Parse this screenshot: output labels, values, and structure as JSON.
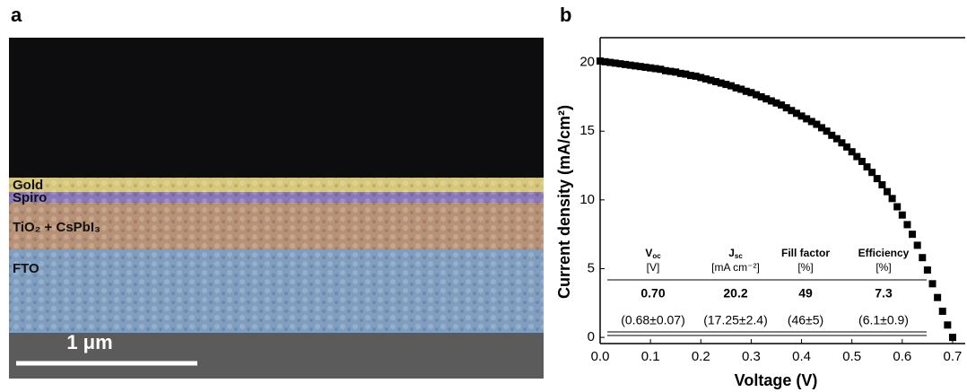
{
  "image_panel": {
    "label": "a",
    "layers": [
      "Gold",
      "Spiro",
      "TiO₂ + CsPbI₃",
      "FTO"
    ],
    "scale_bar": "1 μm"
  },
  "chart_data": {
    "type": "scatter",
    "label": "b",
    "x_label": "Voltage (V)",
    "y_label": "Current density (mA/cm²)",
    "xlim": [
      0,
      0.725
    ],
    "ylim": [
      -0.45,
      21.8
    ],
    "xticks": [
      {
        "value": 0,
        "label": "0.0"
      },
      0.1,
      0.2,
      0.3,
      0.4,
      0.5,
      0.6,
      0.7
    ],
    "yticks": [
      0,
      5,
      10,
      15,
      20
    ],
    "series": [
      {
        "color": "#000000",
        "x": [
          0,
          0.01,
          0.02,
          0.03,
          0.04,
          0.05,
          0.06,
          0.07,
          0.08,
          0.09,
          0.1,
          0.11,
          0.12,
          0.13,
          0.14,
          0.15,
          0.16,
          0.17,
          0.18,
          0.19,
          0.2,
          0.21,
          0.22,
          0.23,
          0.24,
          0.25,
          0.26,
          0.27,
          0.28,
          0.29,
          0.3,
          0.31,
          0.32,
          0.33,
          0.34,
          0.35,
          0.36,
          0.37,
          0.38,
          0.39,
          0.4,
          0.41,
          0.42,
          0.43,
          0.44,
          0.45,
          0.46,
          0.47,
          0.48,
          0.49,
          0.5,
          0.51,
          0.52,
          0.53,
          0.54,
          0.55,
          0.56,
          0.57,
          0.58,
          0.59,
          0.6,
          0.61,
          0.62,
          0.63,
          0.64,
          0.65,
          0.66,
          0.67,
          0.68,
          0.69,
          0.7
        ],
        "values": [
          20.1,
          20.05,
          20,
          19.95,
          19.9,
          19.85,
          19.8,
          19.75,
          19.7,
          19.65,
          19.6,
          19.55,
          19.5,
          19.4,
          19.35,
          19.3,
          19.2,
          19.15,
          19.05,
          19,
          18.9,
          18.8,
          18.7,
          18.6,
          18.5,
          18.4,
          18.3,
          18.15,
          18.05,
          17.9,
          17.8,
          17.65,
          17.5,
          17.35,
          17.2,
          17.05,
          16.9,
          16.7,
          16.5,
          16.3,
          16.1,
          15.9,
          15.7,
          15.5,
          15.25,
          15,
          14.7,
          14.45,
          14.15,
          13.85,
          13.5,
          13.15,
          12.8,
          12.4,
          12,
          11.55,
          11.1,
          10.6,
          10.1,
          9.5,
          8.9,
          8.2,
          7.5,
          6.7,
          5.8,
          4.9,
          3.9,
          2.9,
          1.9,
          0.9,
          0
        ]
      }
    ],
    "table": {
      "columns": [
        {
          "symbol": "V",
          "subscript": "oc",
          "unit": "[V]"
        },
        {
          "symbol": "J",
          "subscript": "sc",
          "unit": "[mA cm⁻²]"
        },
        {
          "symbol": "Fill factor",
          "subscript": "",
          "unit": "[%]"
        },
        {
          "symbol": "Efficiency",
          "subscript": "",
          "unit": "[%]"
        }
      ],
      "rows": [
        [
          "0.70",
          "20.2",
          "49",
          "7.3"
        ],
        [
          "(0.68±0.07)",
          "(17.25±2.4)",
          "(46±5)",
          "(6.1±0.9)"
        ]
      ]
    }
  }
}
